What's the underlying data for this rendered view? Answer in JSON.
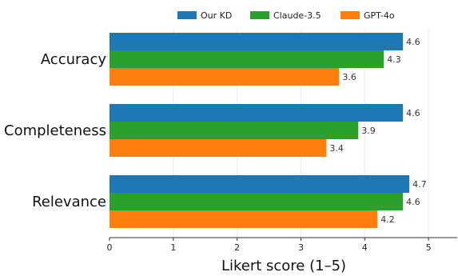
{
  "chart_data": {
    "type": "bar",
    "orientation": "horizontal",
    "categories": [
      "Accuracy",
      "Completeness",
      "Relevance"
    ],
    "series": [
      {
        "name": "Our KD",
        "values": [
          4.6,
          4.6,
          4.7
        ],
        "color": "#1f77b4"
      },
      {
        "name": "Claude-3.5",
        "values": [
          4.3,
          3.9,
          4.6
        ],
        "color": "#2ca02c"
      },
      {
        "name": "GPT-4o",
        "values": [
          3.6,
          3.4,
          4.2
        ],
        "color": "#ff7f0e"
      }
    ],
    "value_labels": [
      [
        "4.6",
        "4.6",
        "4.7"
      ],
      [
        "4.3",
        "3.9",
        "4.6"
      ],
      [
        "3.6",
        "3.4",
        "4.2"
      ]
    ],
    "title": "",
    "xlabel": "Likert score (1–5)",
    "ylabel": "",
    "xlim": [
      0,
      5.45
    ],
    "xticks": [
      0,
      1,
      2,
      3,
      4,
      5
    ],
    "xtick_labels": [
      "0",
      "1",
      "2",
      "3",
      "4",
      "5"
    ],
    "grid": "x",
    "legend_placement": "top-center"
  }
}
